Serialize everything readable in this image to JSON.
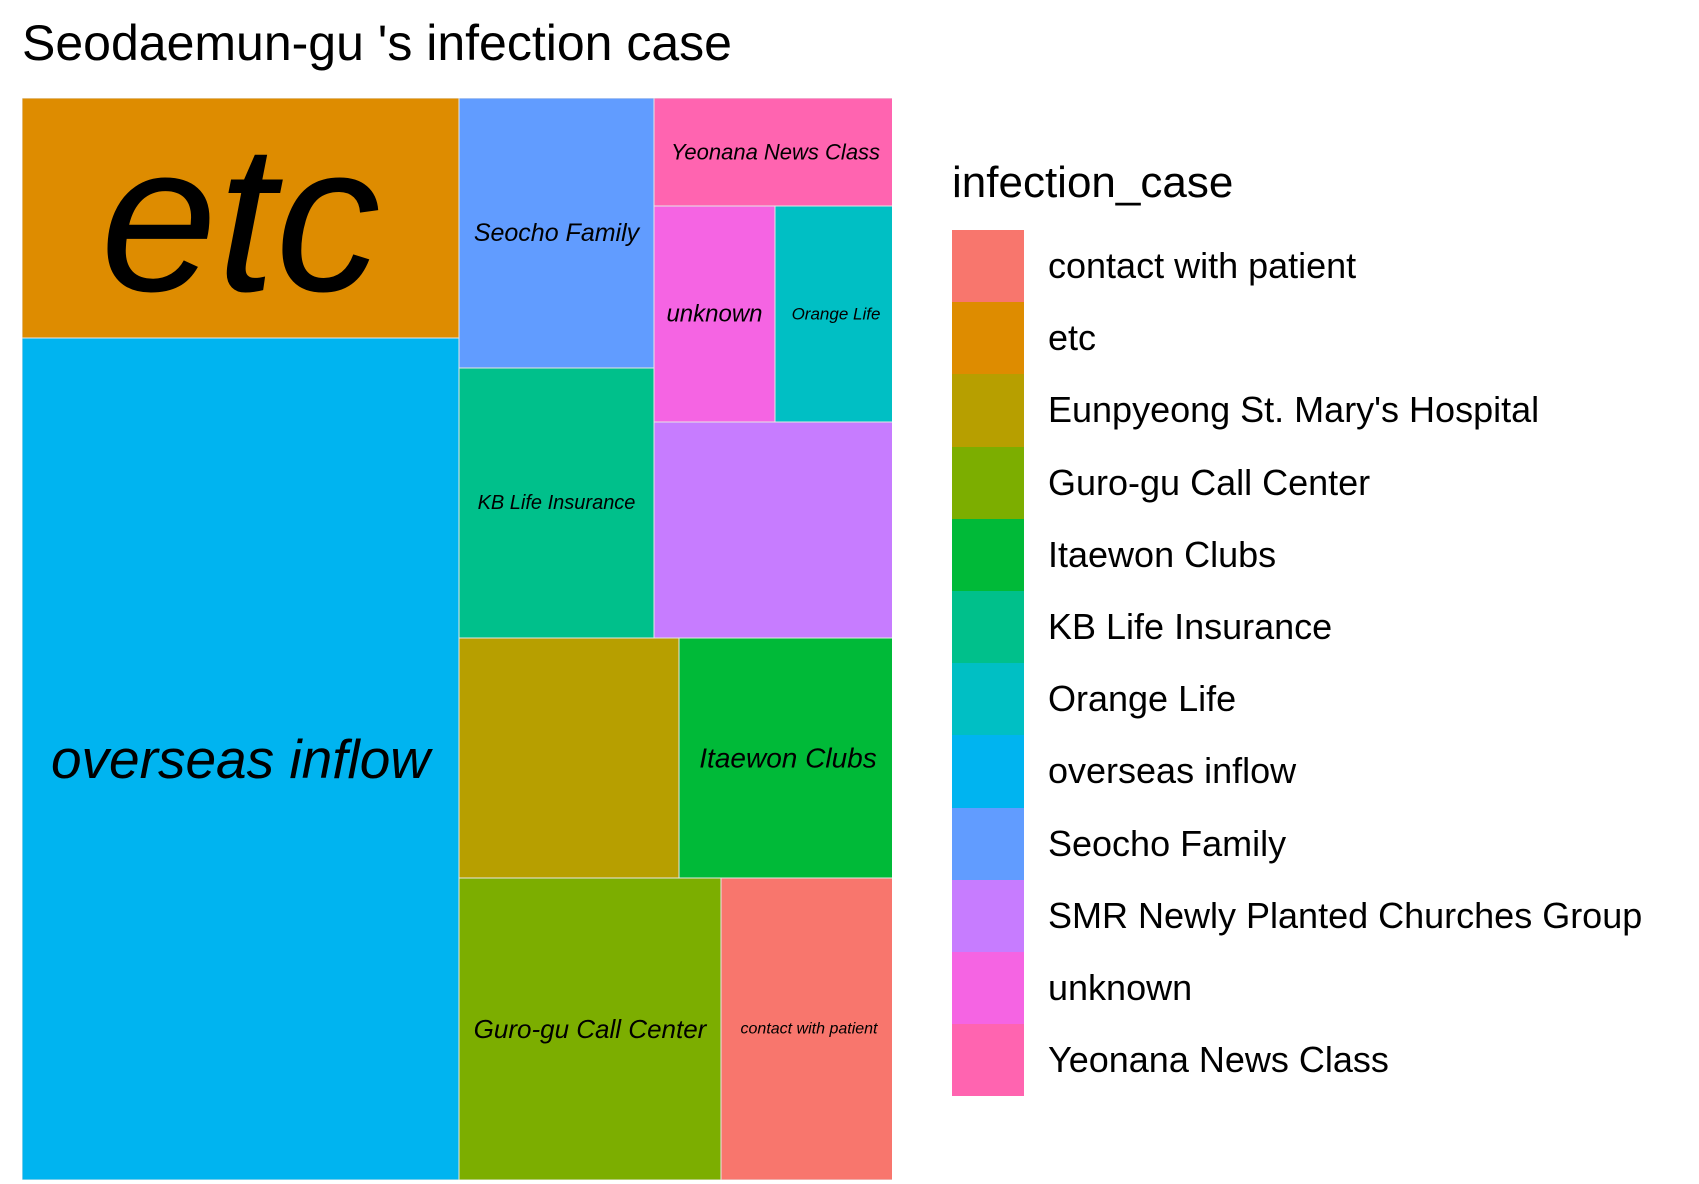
{
  "chart_data": {
    "type": "treemap",
    "title": "Seodaemun-gu 's infection case",
    "legend_title": "infection_case",
    "legend_position": "right",
    "categories": [
      "contact with patient",
      "etc",
      "Eunpyeong St. Mary's Hospital",
      "Guro-gu Call Center",
      "Itaewon Clubs",
      "KB Life Insurance",
      "Orange Life",
      "overseas inflow",
      "Seocho Family",
      "SMR Newly Planted Churches Group",
      "unknown",
      "Yeonana News Class"
    ],
    "colors": [
      "#F8766D",
      "#DE8C00",
      "#B79F00",
      "#7CAE00",
      "#00BA38",
      "#00C08B",
      "#00BFC4",
      "#00B4F0",
      "#619CFF",
      "#C77CFF",
      "#F564E3",
      "#FF64B0"
    ],
    "tile_labels": {
      "contact with patient": "contact with patient",
      "etc": "etc",
      "Guro-gu Call Center": "Guro-gu Call Center",
      "Itaewon Clubs": "Itaewon Clubs",
      "KB Life Insurance": "KB Life Insurance",
      "Orange Life": "Orange Life",
      "overseas inflow": "overseas inflow",
      "Seocho Family": "Seocho Family",
      "unknown": "unknown",
      "Yeonana News Class": "Yeonana News Class"
    },
    "area_share": {
      "overseas inflow": 0.388,
      "etc": 0.11,
      "Guro-gu Call Center": 0.07,
      "Seocho Family": 0.055,
      "KB Life Insurance": 0.055,
      "SMR Newly Planted Churches Group": 0.055,
      "Eunpyeong St. Mary's Hospital": 0.055,
      "Itaewon Clubs": 0.055,
      "contact with patient": 0.047,
      "unknown": 0.028,
      "Orange Life": 0.028,
      "Yeonana News Class": 0.028
    }
  }
}
